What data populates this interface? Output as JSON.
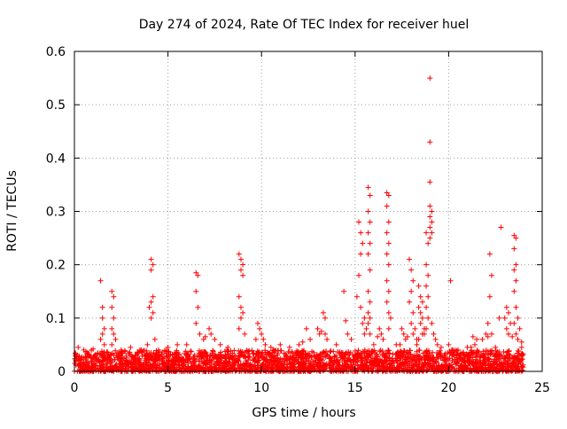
{
  "chart_data": {
    "type": "scatter",
    "title": "Day 274 of 2024, Rate Of TEC Index for receiver huel",
    "xlabel": "GPS time / hours",
    "ylabel": "ROTI / TECUs",
    "xlim": [
      0,
      25
    ],
    "ylim": [
      0,
      0.6
    ],
    "xticks": [
      0,
      5,
      10,
      15,
      20,
      25
    ],
    "yticks": [
      0,
      0.1,
      0.2,
      0.3,
      0.4,
      0.5,
      0.6
    ],
    "xtick_labels": [
      "0",
      "5",
      "10",
      "15",
      "20",
      "25"
    ],
    "ytick_labels": [
      "0",
      "0.1",
      "0.2",
      "0.3",
      "0.4",
      "0.5",
      "0.6"
    ],
    "grid": true,
    "marker": "+",
    "marker_color": "#ff0000",
    "baseline_band": {
      "x_range": [
        0,
        24
      ],
      "y_range": [
        0.0,
        0.04
      ],
      "description": "dense cloud of points"
    },
    "series": [
      {
        "name": "ROTI",
        "points": [
          [
            1.4,
            0.17
          ],
          [
            1.5,
            0.12
          ],
          [
            1.5,
            0.1
          ],
          [
            1.6,
            0.08
          ],
          [
            1.5,
            0.07
          ],
          [
            1.6,
            0.05
          ],
          [
            1.4,
            0.06
          ],
          [
            2.0,
            0.15
          ],
          [
            2.1,
            0.14
          ],
          [
            2.0,
            0.12
          ],
          [
            2.1,
            0.1
          ],
          [
            2.0,
            0.08
          ],
          [
            2.1,
            0.07
          ],
          [
            2.2,
            0.06
          ],
          [
            2.0,
            0.05
          ],
          [
            4.1,
            0.21
          ],
          [
            4.2,
            0.2
          ],
          [
            4.1,
            0.19
          ],
          [
            4.2,
            0.14
          ],
          [
            4.1,
            0.13
          ],
          [
            4.0,
            0.12
          ],
          [
            4.2,
            0.11
          ],
          [
            4.1,
            0.1
          ],
          [
            3.9,
            0.05
          ],
          [
            4.3,
            0.06
          ],
          [
            6.5,
            0.185
          ],
          [
            6.6,
            0.18
          ],
          [
            6.5,
            0.15
          ],
          [
            6.6,
            0.12
          ],
          [
            6.5,
            0.09
          ],
          [
            6.7,
            0.07
          ],
          [
            6.9,
            0.06
          ],
          [
            7.2,
            0.08
          ],
          [
            7.3,
            0.07
          ],
          [
            7.0,
            0.065
          ],
          [
            7.5,
            0.06
          ],
          [
            8.8,
            0.22
          ],
          [
            8.9,
            0.21
          ],
          [
            9.0,
            0.2
          ],
          [
            8.9,
            0.19
          ],
          [
            9.0,
            0.18
          ],
          [
            8.8,
            0.14
          ],
          [
            8.9,
            0.12
          ],
          [
            9.0,
            0.11
          ],
          [
            8.9,
            0.1
          ],
          [
            8.8,
            0.08
          ],
          [
            9.1,
            0.07
          ],
          [
            9.8,
            0.09
          ],
          [
            9.9,
            0.08
          ],
          [
            10.0,
            0.07
          ],
          [
            10.1,
            0.06
          ],
          [
            10.2,
            0.05
          ],
          [
            9.7,
            0.06
          ],
          [
            12.4,
            0.08
          ],
          [
            12.6,
            0.06
          ],
          [
            12.2,
            0.055
          ],
          [
            13.0,
            0.08
          ],
          [
            13.2,
            0.075
          ],
          [
            13.4,
            0.07
          ],
          [
            13.5,
            0.06
          ],
          [
            13.1,
            0.07
          ],
          [
            13.3,
            0.11
          ],
          [
            13.4,
            0.1
          ],
          [
            14.4,
            0.15
          ],
          [
            14.5,
            0.095
          ],
          [
            14.6,
            0.07
          ],
          [
            14.8,
            0.06
          ],
          [
            15.2,
            0.28
          ],
          [
            15.3,
            0.26
          ],
          [
            15.4,
            0.24
          ],
          [
            15.3,
            0.22
          ],
          [
            15.2,
            0.18
          ],
          [
            15.1,
            0.14
          ],
          [
            15.3,
            0.12
          ],
          [
            15.5,
            0.1
          ],
          [
            15.4,
            0.09
          ],
          [
            15.6,
            0.08
          ],
          [
            15.5,
            0.07
          ],
          [
            15.7,
            0.345
          ],
          [
            15.8,
            0.33
          ],
          [
            15.7,
            0.3
          ],
          [
            15.8,
            0.28
          ],
          [
            15.7,
            0.26
          ],
          [
            15.8,
            0.24
          ],
          [
            15.7,
            0.22
          ],
          [
            15.8,
            0.19
          ],
          [
            15.7,
            0.15
          ],
          [
            15.8,
            0.13
          ],
          [
            15.7,
            0.11
          ],
          [
            15.8,
            0.1
          ],
          [
            15.7,
            0.09
          ],
          [
            15.8,
            0.07
          ],
          [
            16.3,
            0.08
          ],
          [
            16.4,
            0.07
          ],
          [
            16.5,
            0.06
          ],
          [
            16.2,
            0.065
          ],
          [
            16.7,
            0.335
          ],
          [
            16.8,
            0.33
          ],
          [
            16.7,
            0.31
          ],
          [
            16.8,
            0.28
          ],
          [
            16.7,
            0.26
          ],
          [
            16.8,
            0.24
          ],
          [
            16.7,
            0.22
          ],
          [
            16.8,
            0.2
          ],
          [
            16.7,
            0.17
          ],
          [
            16.8,
            0.15
          ],
          [
            16.7,
            0.13
          ],
          [
            16.8,
            0.11
          ],
          [
            16.9,
            0.1
          ],
          [
            16.8,
            0.08
          ],
          [
            17.5,
            0.08
          ],
          [
            17.6,
            0.07
          ],
          [
            17.7,
            0.06
          ],
          [
            17.4,
            0.05
          ],
          [
            17.9,
            0.21
          ],
          [
            18.0,
            0.19
          ],
          [
            18.1,
            0.17
          ],
          [
            18.0,
            0.15
          ],
          [
            17.9,
            0.13
          ],
          [
            18.1,
            0.11
          ],
          [
            18.0,
            0.09
          ],
          [
            18.2,
            0.08
          ],
          [
            18.1,
            0.07
          ],
          [
            17.8,
            0.065
          ],
          [
            18.3,
            0.06
          ],
          [
            18.4,
            0.16
          ],
          [
            18.5,
            0.14
          ],
          [
            18.6,
            0.13
          ],
          [
            18.4,
            0.12
          ],
          [
            18.5,
            0.11
          ],
          [
            18.6,
            0.1
          ],
          [
            18.5,
            0.09
          ],
          [
            18.7,
            0.08
          ],
          [
            18.6,
            0.07
          ],
          [
            18.4,
            0.06
          ],
          [
            18.3,
            0.05
          ],
          [
            18.8,
            0.26
          ],
          [
            18.9,
            0.24
          ],
          [
            18.8,
            0.2
          ],
          [
            18.9,
            0.18
          ],
          [
            18.8,
            0.16
          ],
          [
            18.9,
            0.14
          ],
          [
            18.8,
            0.12
          ],
          [
            18.9,
            0.1
          ],
          [
            18.8,
            0.08
          ],
          [
            18.7,
            0.07
          ],
          [
            19.0,
            0.55
          ],
          [
            19.0,
            0.43
          ],
          [
            19.0,
            0.355
          ],
          [
            19.0,
            0.31
          ],
          [
            19.1,
            0.3
          ],
          [
            19.0,
            0.29
          ],
          [
            19.1,
            0.28
          ],
          [
            19.0,
            0.27
          ],
          [
            19.1,
            0.26
          ],
          [
            19.0,
            0.25
          ],
          [
            19.1,
            0.09
          ],
          [
            19.2,
            0.07
          ],
          [
            19.3,
            0.06
          ],
          [
            19.4,
            0.05
          ],
          [
            20.1,
            0.17
          ],
          [
            20.0,
            0.05
          ],
          [
            20.2,
            0.04
          ],
          [
            21.3,
            0.065
          ],
          [
            21.5,
            0.06
          ],
          [
            21.4,
            0.05
          ],
          [
            21.2,
            0.045
          ],
          [
            22.0,
            0.07
          ],
          [
            22.1,
            0.065
          ],
          [
            21.8,
            0.06
          ],
          [
            22.2,
            0.22
          ],
          [
            22.3,
            0.18
          ],
          [
            22.2,
            0.14
          ],
          [
            22.1,
            0.09
          ],
          [
            22.3,
            0.07
          ],
          [
            22.8,
            0.27
          ],
          [
            22.7,
            0.1
          ],
          [
            23.1,
            0.12
          ],
          [
            23.2,
            0.11
          ],
          [
            23.0,
            0.1
          ],
          [
            23.3,
            0.09
          ],
          [
            23.1,
            0.08
          ],
          [
            23.2,
            0.07
          ],
          [
            23.4,
            0.065
          ],
          [
            23.5,
            0.255
          ],
          [
            23.6,
            0.25
          ],
          [
            23.5,
            0.23
          ],
          [
            23.6,
            0.2
          ],
          [
            23.5,
            0.19
          ],
          [
            23.6,
            0.17
          ],
          [
            23.5,
            0.15
          ],
          [
            23.6,
            0.12
          ],
          [
            23.7,
            0.1
          ],
          [
            23.5,
            0.09
          ],
          [
            23.8,
            0.08
          ],
          [
            23.6,
            0.07
          ],
          [
            23.7,
            0.06
          ],
          [
            23.9,
            0.055
          ],
          [
            0.2,
            0.045
          ],
          [
            0.5,
            0.04
          ],
          [
            1.0,
            0.042
          ],
          [
            2.5,
            0.04
          ],
          [
            3.0,
            0.045
          ],
          [
            3.5,
            0.04
          ],
          [
            5.0,
            0.045
          ],
          [
            5.5,
            0.05
          ],
          [
            6.0,
            0.05
          ],
          [
            7.8,
            0.05
          ],
          [
            8.2,
            0.045
          ],
          [
            10.5,
            0.045
          ],
          [
            11.0,
            0.05
          ],
          [
            11.5,
            0.045
          ],
          [
            12.0,
            0.05
          ],
          [
            14.0,
            0.05
          ],
          [
            16.0,
            0.05
          ],
          [
            17.2,
            0.05
          ],
          [
            19.6,
            0.045
          ],
          [
            20.5,
            0.04
          ],
          [
            21.0,
            0.045
          ],
          [
            22.5,
            0.045
          ],
          [
            23.9,
            0.045
          ]
        ]
      }
    ]
  }
}
